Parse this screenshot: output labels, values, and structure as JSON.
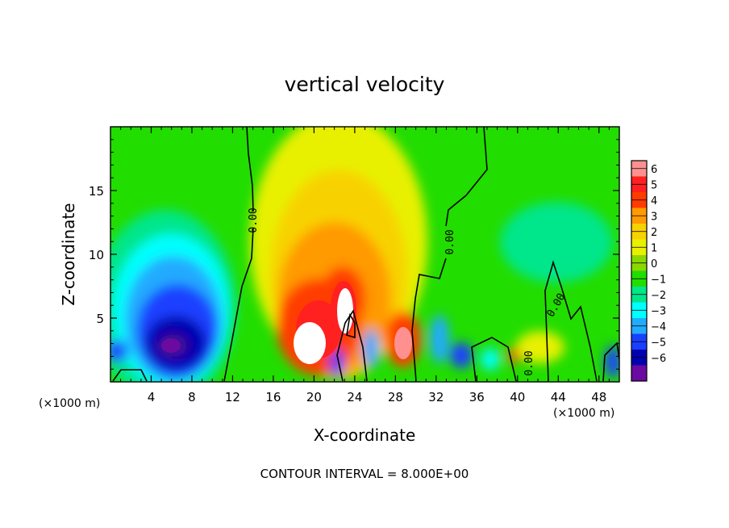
{
  "chart_data": {
    "type": "heatmap",
    "title": "vertical velocity",
    "xlabel": "X-coordinate",
    "ylabel": "Z-coordinate",
    "x_unit": "(×1000 m)",
    "z_unit": "(×1000 m)",
    "xlim": [
      0,
      50
    ],
    "ylim": [
      0,
      20
    ],
    "x_ticks": [
      4,
      8,
      12,
      16,
      20,
      24,
      28,
      32,
      36,
      40,
      44,
      48
    ],
    "y_ticks": [
      5,
      10,
      15
    ],
    "colorbar": {
      "levels": [
        6,
        5,
        4,
        3,
        2,
        1,
        0,
        -1,
        -2,
        -3,
        -4,
        -5,
        -6
      ],
      "labels": [
        "6",
        "5",
        "4",
        "3",
        "2",
        "1",
        "0",
        "−1",
        "−2",
        "−3",
        "−4",
        "−5",
        "−6"
      ],
      "colors": [
        "#ff9090",
        "#ff2020",
        "#ff3c00",
        "#ff9a00",
        "#f8d200",
        "#e8f000",
        "#8ad800",
        "#22dd00",
        "#00e68a",
        "#00ffff",
        "#22aaff",
        "#1a40ff",
        "#0000b0",
        "#6a0aa0"
      ]
    },
    "contour_label": "0.00",
    "footer": "CONTOUR INTERVAL = 8.000E+00",
    "features": [
      {
        "name": "downdraft",
        "x": 6.5,
        "z": 2.5,
        "value": -5.5
      },
      {
        "name": "updraft",
        "x": 19.5,
        "z": 2.7,
        "value": 8
      },
      {
        "name": "updraft",
        "x": 22.5,
        "z": 5.5,
        "value": 8
      },
      {
        "name": "updraft",
        "x": 28.8,
        "z": 2.8,
        "value": 4.5
      },
      {
        "name": "downdraft",
        "x": 22.2,
        "z": 1.0,
        "value": -5
      },
      {
        "name": "downdraft",
        "x": 25.4,
        "z": 2.2,
        "value": -3.5
      },
      {
        "name": "downdraft",
        "x": 32.3,
        "z": 2.8,
        "value": -3
      },
      {
        "name": "downdraft",
        "x": 34.3,
        "z": 1.8,
        "value": -4
      },
      {
        "name": "downdraft",
        "x": 38.0,
        "z": 1.8,
        "value": -2.5
      },
      {
        "name": "updraft",
        "x": 40.0,
        "z": 2.3,
        "value": 3
      },
      {
        "name": "downdraft",
        "x": 49.5,
        "z": 1.5,
        "value": -3
      },
      {
        "name": "downdraft",
        "x": 0.7,
        "z": 2.0,
        "value": -3.5
      }
    ]
  }
}
